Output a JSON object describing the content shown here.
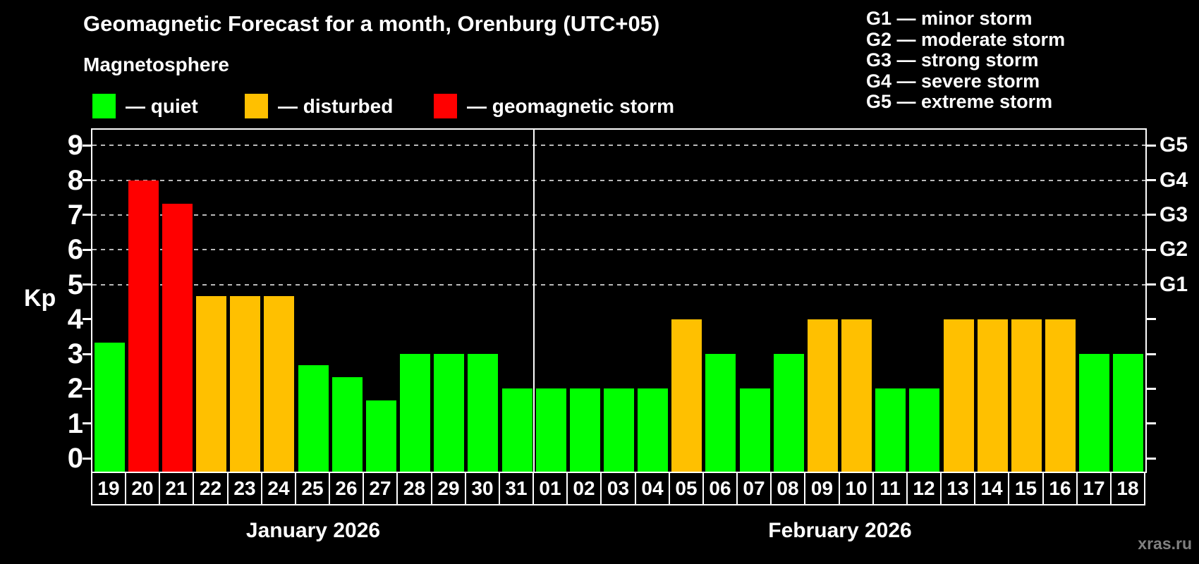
{
  "header": {
    "title": "Geomagnetic Forecast for a month, Orenburg (UTC+05)",
    "subtitle": "Magnetosphere"
  },
  "series_legend": [
    {
      "key": "quiet",
      "label": "— quiet",
      "color": "#00ff00"
    },
    {
      "key": "disturbed",
      "label": "— disturbed",
      "color": "#ffc000"
    },
    {
      "key": "storm",
      "label": "— geomagnetic storm",
      "color": "#ff0000"
    }
  ],
  "g_scale_legend": [
    {
      "label": "G1 — minor storm"
    },
    {
      "label": "G2 — moderate storm"
    },
    {
      "label": "G3 — strong storm"
    },
    {
      "label": "G4 — severe storm"
    },
    {
      "label": "G5 — extreme storm"
    }
  ],
  "watermark": "xras.ru",
  "colors": {
    "background": "#000000",
    "axis": "#ffffff",
    "grid": "#b9b9b9",
    "text": "#ffffff",
    "watermark": "#808080",
    "quiet": "#00ff00",
    "disturbed": "#ffc000",
    "storm": "#ff0000"
  },
  "chart_data": {
    "type": "bar",
    "title": "Geomagnetic Forecast for a month, Orenburg (UTC+05)",
    "ylabel": "Kp",
    "xlabel": "",
    "ylim": [
      -0.4,
      9.45
    ],
    "y_ticks": [
      0,
      1,
      2,
      3,
      4,
      5,
      6,
      7,
      8,
      9
    ],
    "grid_levels": [
      5,
      6,
      7,
      8,
      9
    ],
    "grid_style": "dashed",
    "legend_position": "top",
    "right_axis_labels": [
      {
        "kp": 5,
        "label": "G1"
      },
      {
        "kp": 6,
        "label": "G2"
      },
      {
        "kp": 7,
        "label": "G3"
      },
      {
        "kp": 8,
        "label": "G4"
      },
      {
        "kp": 9,
        "label": "G5"
      }
    ],
    "months": [
      {
        "label": "January 2026",
        "start_index": 0,
        "days": 13
      },
      {
        "label": "February 2026",
        "start_index": 13,
        "days": 18
      }
    ],
    "categories": [
      "19",
      "20",
      "21",
      "22",
      "23",
      "24",
      "25",
      "26",
      "27",
      "28",
      "29",
      "30",
      "31",
      "01",
      "02",
      "03",
      "04",
      "05",
      "06",
      "07",
      "08",
      "09",
      "10",
      "11",
      "12",
      "13",
      "14",
      "15",
      "16",
      "17",
      "18"
    ],
    "values": [
      3.33,
      8,
      7.33,
      4.67,
      4.67,
      4.67,
      2.67,
      2.33,
      1.67,
      3,
      3,
      3,
      2,
      2,
      2,
      2,
      2,
      4,
      3,
      2,
      3,
      4,
      4,
      2,
      2,
      4,
      4,
      4,
      4,
      3,
      3
    ],
    "states": [
      "quiet",
      "storm",
      "storm",
      "disturbed",
      "disturbed",
      "disturbed",
      "quiet",
      "quiet",
      "quiet",
      "quiet",
      "quiet",
      "quiet",
      "quiet",
      "quiet",
      "quiet",
      "quiet",
      "quiet",
      "disturbed",
      "quiet",
      "quiet",
      "quiet",
      "disturbed",
      "disturbed",
      "quiet",
      "quiet",
      "disturbed",
      "disturbed",
      "disturbed",
      "disturbed",
      "quiet",
      "quiet"
    ]
  }
}
